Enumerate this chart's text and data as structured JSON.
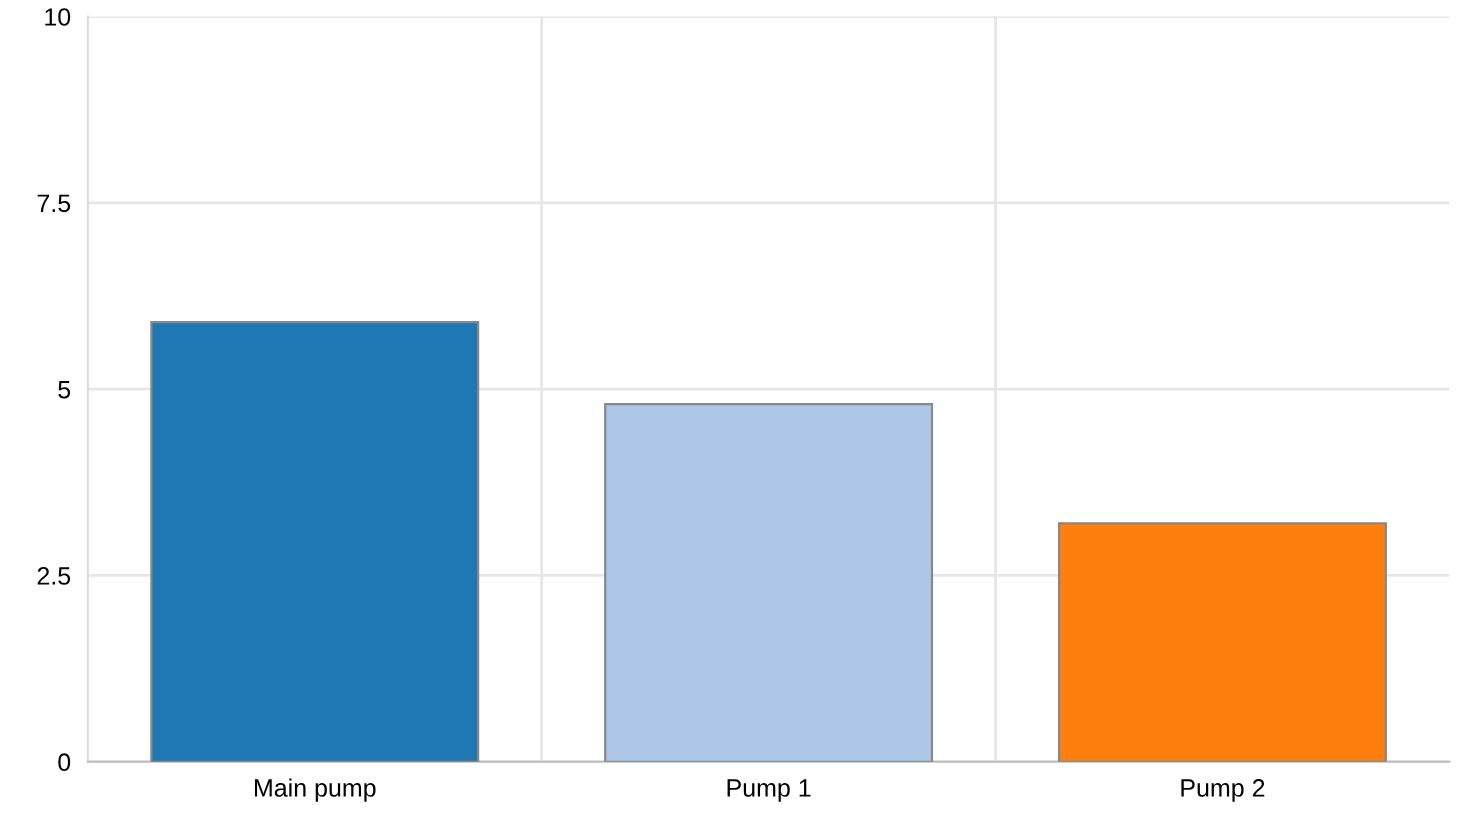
{
  "chart_data": {
    "type": "bar",
    "categories": [
      "Main pump",
      "Pump 1",
      "Pump 2"
    ],
    "values": [
      5.9,
      4.8,
      3.2
    ],
    "colors": [
      "#1f77b4",
      "#aec7e8",
      "#ff7f0e"
    ],
    "ylim": [
      0,
      10
    ],
    "yticks": [
      0,
      2.5,
      5,
      7.5,
      10
    ],
    "grid": true
  }
}
